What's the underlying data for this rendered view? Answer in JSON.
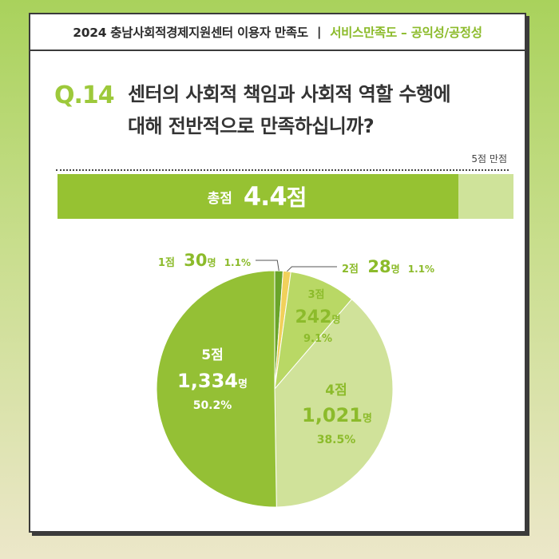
{
  "header": {
    "title": "2024 충남사회적경제지원센터 이용자 만족도",
    "separator": "|",
    "subtitle": "서비스만족도 – 공익성/공정성"
  },
  "question": {
    "number": "Q.14",
    "line1": "센터의 사회적 책임과 사회적 역할 수행에",
    "line2": "대해 전반적으로 만족하십니까?"
  },
  "score": {
    "full_mark_label": "5점 만점",
    "label": "총점",
    "value": "4.4",
    "unit": "점",
    "max": 5
  },
  "colors": {
    "s1": "#6aa52a",
    "s2": "#f1d15b",
    "s3": "#b9d865",
    "s4": "#d0e29a",
    "s5": "#94c035",
    "label_dark": "#8cbb2b",
    "label_mid": "#8cbb2b",
    "label_white": "#ffffff"
  },
  "chart_data": {
    "type": "pie",
    "slices": [
      {
        "name": "1점",
        "count": 30,
        "count_label": "30",
        "unit": "명",
        "percent": 1.1,
        "percent_label": "1.1%"
      },
      {
        "name": "2점",
        "count": 28,
        "count_label": "28",
        "unit": "명",
        "percent": 1.1,
        "percent_label": "1.1%"
      },
      {
        "name": "3점",
        "count": 242,
        "count_label": "242",
        "unit": "명",
        "percent": 9.1,
        "percent_label": "9.1%"
      },
      {
        "name": "4점",
        "count": 1021,
        "count_label": "1,021",
        "unit": "명",
        "percent": 38.5,
        "percent_label": "38.5%"
      },
      {
        "name": "5점",
        "count": 1334,
        "count_label": "1,334",
        "unit": "명",
        "percent": 50.2,
        "percent_label": "50.2%"
      }
    ]
  }
}
